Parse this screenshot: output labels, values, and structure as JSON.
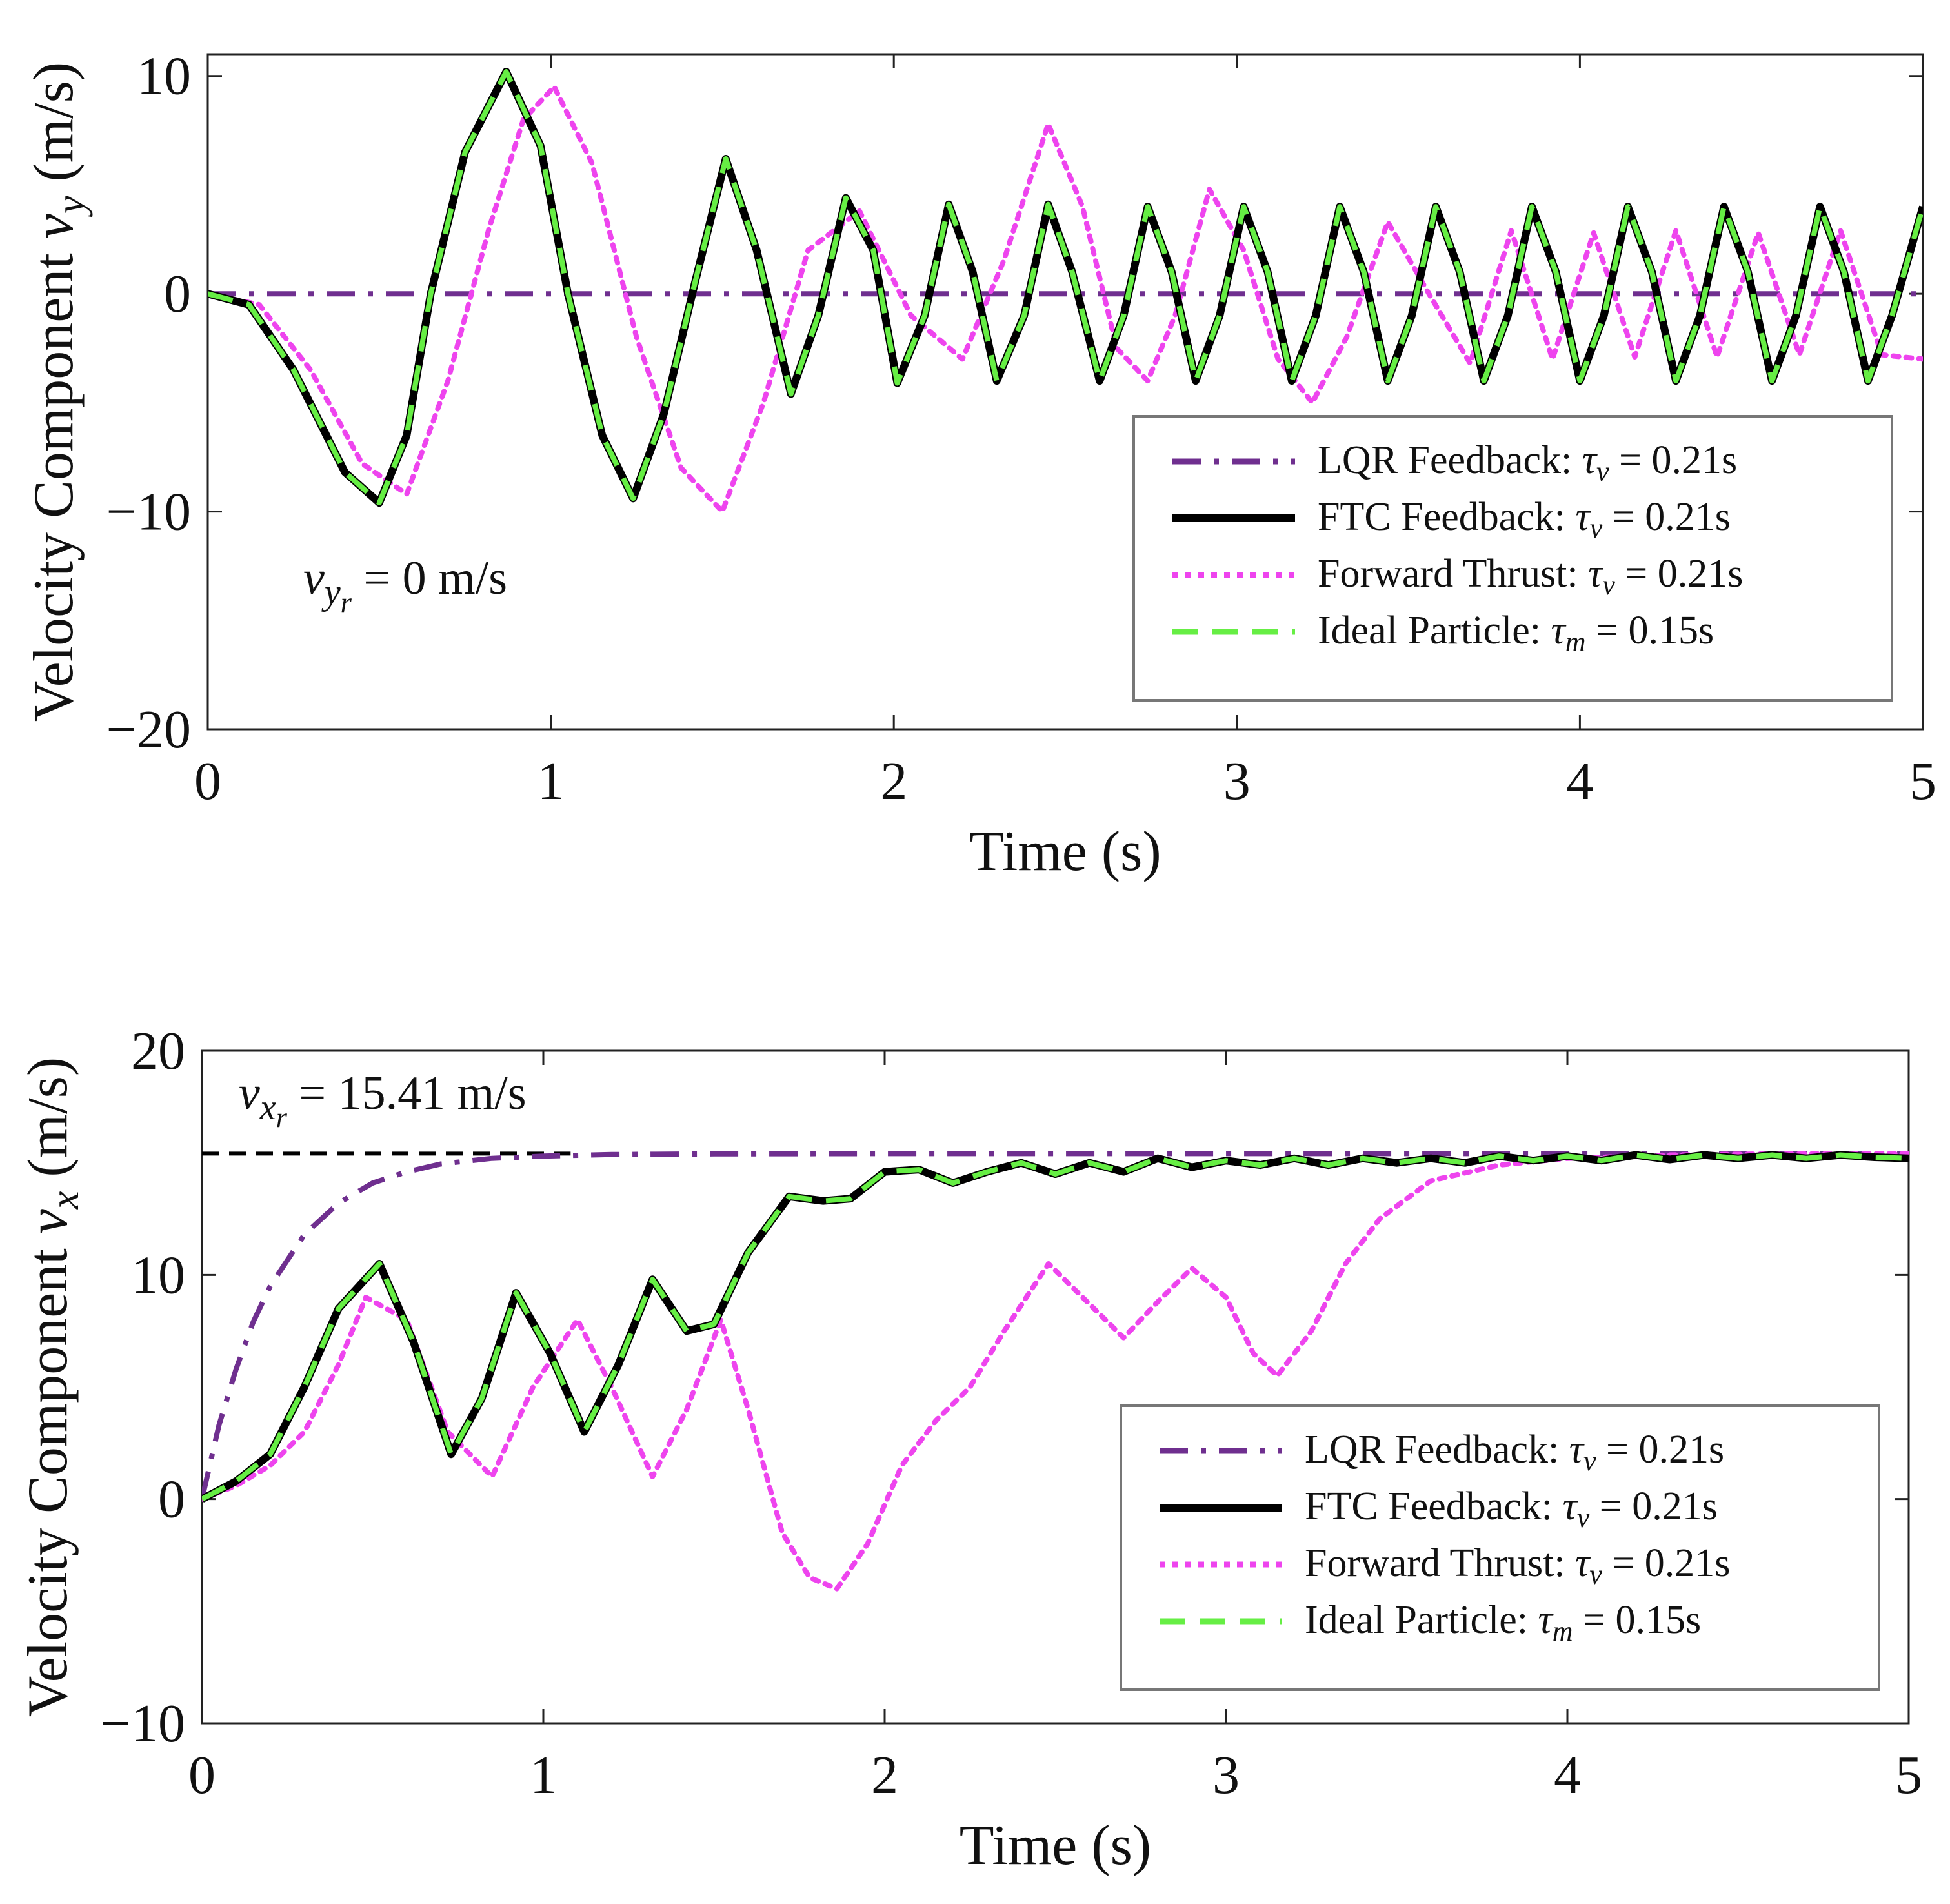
{
  "figure": {
    "description_free": true
  },
  "series_styles": [
    {
      "key": "lqr",
      "color": "#6f2f8f",
      "dash": "dashdot"
    },
    {
      "key": "ftc",
      "color": "#000000",
      "dash": "solid"
    },
    {
      "key": "fwd",
      "color": "#ee44ee",
      "dash": "dotted"
    },
    {
      "key": "ideal",
      "color": "#66ee44",
      "dash": "dashed"
    }
  ],
  "chart_data": [
    {
      "type": "line",
      "id": "vy",
      "xlabel": "Time (s)",
      "ylabel_main": "Velocity Component ",
      "ylabel_var": "v",
      "ylabel_sub": "y",
      "ylabel_units": " (m/s)",
      "xlim": [
        0,
        5
      ],
      "ylim": [
        -20,
        11
      ],
      "xticks": [
        0,
        1,
        2,
        3,
        4,
        5
      ],
      "xtick_labels": [
        "0",
        "1",
        "2",
        "3",
        "4",
        "5"
      ],
      "yticks": [
        -20,
        -10,
        0,
        10
      ],
      "ytick_labels": [
        "−20",
        "−10",
        "0",
        "10"
      ],
      "legend_position": "lower-right",
      "annotation": {
        "var": "v",
        "sub": "y",
        "subsub": "r",
        "text": "= 0 m/s"
      },
      "series": [
        {
          "name": "LQR Feedback",
          "key": "lqr",
          "tau_symbol": "v",
          "tau_value": "= 0.21s",
          "x": [
            0,
            5
          ],
          "y": [
            0,
            0
          ]
        },
        {
          "name": "FTC Feedback",
          "key": "ftc",
          "tau_symbol": "v",
          "tau_value": "= 0.21s",
          "x": [
            0,
            0.12,
            0.25,
            0.4,
            0.5,
            0.58,
            0.65,
            0.75,
            0.87,
            0.97,
            1.05,
            1.15,
            1.24,
            1.33,
            1.42,
            1.51,
            1.6,
            1.7,
            1.78,
            1.86,
            1.94,
            2.01,
            2.09,
            2.16,
            2.23,
            2.3,
            2.38,
            2.45,
            2.52,
            2.6,
            2.67,
            2.74,
            2.81,
            2.88,
            2.95,
            3.02,
            3.09,
            3.16,
            3.23,
            3.3,
            3.37,
            3.44,
            3.51,
            3.58,
            3.65,
            3.72,
            3.79,
            3.86,
            3.93,
            4.0,
            4.07,
            4.14,
            4.21,
            4.28,
            4.35,
            4.42,
            4.49,
            4.56,
            4.63,
            4.7,
            4.77,
            4.84,
            4.91,
            5.0
          ],
          "y": [
            0,
            -0.5,
            -3.5,
            -8.2,
            -9.6,
            -6.5,
            0,
            6.5,
            10.2,
            6.8,
            0,
            -6.5,
            -9.4,
            -5.5,
            0.5,
            6.2,
            2,
            -4.6,
            -1,
            4.4,
            2,
            -4.1,
            -1,
            4.1,
            1,
            -4,
            -1,
            4.1,
            1,
            -4,
            -1,
            4,
            1,
            -4,
            -1,
            4,
            1,
            -4,
            -1,
            4,
            1,
            -4,
            -1,
            4,
            1,
            -4,
            -1,
            4,
            1,
            -4,
            -1,
            4,
            1,
            -4,
            -1,
            4,
            1,
            -4,
            -1,
            4,
            1,
            -4,
            -1,
            4
          ]
        },
        {
          "name": "Forward Thrust",
          "key": "fwd",
          "tau_symbol": "v",
          "tau_value": "= 0.21s",
          "x": [
            0,
            0.15,
            0.3,
            0.45,
            0.58,
            0.7,
            0.82,
            0.92,
            1.01,
            1.12,
            1.25,
            1.38,
            1.5,
            1.62,
            1.75,
            1.9,
            2.05,
            2.2,
            2.32,
            2.45,
            2.55,
            2.65,
            2.74,
            2.82,
            2.92,
            3.02,
            3.12,
            3.22,
            3.32,
            3.44,
            3.56,
            3.68,
            3.8,
            3.92,
            4.04,
            4.16,
            4.28,
            4.4,
            4.52,
            4.64,
            4.76,
            4.88,
            5.0
          ],
          "y": [
            0,
            -0.5,
            -3.5,
            -7.8,
            -9.2,
            -4,
            3,
            8,
            9.5,
            6,
            -2,
            -8,
            -10,
            -5,
            2,
            3.8,
            -1,
            -3,
            1.5,
            7.8,
            4,
            -2.5,
            -4,
            -1,
            4.8,
            2,
            -3,
            -5,
            -2,
            3.3,
            0,
            -3.2,
            2.9,
            -3,
            2.8,
            -2.9,
            2.9,
            -2.9,
            2.8,
            -2.8,
            2.9,
            -2.8,
            -3
          ]
        },
        {
          "name": "Ideal Particle",
          "key": "ideal",
          "tau_symbol": "m",
          "tau_value": "= 0.15s",
          "x": [
            0,
            0.12,
            0.25,
            0.4,
            0.5,
            0.58,
            0.65,
            0.75,
            0.87,
            0.97,
            1.05,
            1.15,
            1.24,
            1.33,
            1.42,
            1.51,
            1.6,
            1.7,
            1.78,
            1.86,
            1.94,
            2.01,
            2.09,
            2.16,
            2.23,
            2.3,
            2.38,
            2.45,
            2.52,
            2.6,
            2.67,
            2.74,
            2.81,
            2.88,
            2.95,
            3.02,
            3.09,
            3.16,
            3.23,
            3.3,
            3.37,
            3.44,
            3.51,
            3.58,
            3.65,
            3.72,
            3.79,
            3.86,
            3.93,
            4.0,
            4.07,
            4.14,
            4.21,
            4.28,
            4.35,
            4.42,
            4.49,
            4.56,
            4.63,
            4.7,
            4.77,
            4.84,
            4.91,
            5.0
          ],
          "y": [
            0,
            -0.5,
            -3.5,
            -8.2,
            -9.6,
            -6.5,
            0,
            6.5,
            10.2,
            6.8,
            0,
            -6.5,
            -9.4,
            -5.5,
            0.5,
            6.2,
            2,
            -4.6,
            -1,
            4.4,
            2,
            -4.1,
            -1,
            4.1,
            1,
            -4,
            -1,
            4.1,
            1,
            -4,
            -1,
            4,
            1,
            -4,
            -1,
            4,
            1,
            -4,
            -1,
            4,
            1,
            -4,
            -1,
            4,
            1,
            -4,
            -1,
            4,
            1,
            -4,
            -1,
            4,
            1,
            -4,
            -1,
            4,
            1,
            -4,
            -1,
            4,
            1,
            -4,
            -1,
            4
          ]
        }
      ]
    },
    {
      "type": "line",
      "id": "vx",
      "xlabel": "Time (s)",
      "ylabel_main": "Velocity Component ",
      "ylabel_var": "v",
      "ylabel_sub": "x",
      "ylabel_units": " (m/s)",
      "xlim": [
        0,
        5
      ],
      "ylim": [
        -10,
        20
      ],
      "xticks": [
        0,
        1,
        2,
        3,
        4,
        5
      ],
      "xtick_labels": [
        "0",
        "1",
        "2",
        "3",
        "4",
        "5"
      ],
      "yticks": [
        -10,
        0,
        10,
        20
      ],
      "ytick_labels": [
        "−10",
        "0",
        "10",
        "20"
      ],
      "legend_position": "lower-right",
      "annotation": {
        "var": "v",
        "sub": "x",
        "subsub": "r",
        "text": "= 15.41 m/s"
      },
      "reference_line": {
        "y": 15.41,
        "x": [
          0,
          1.08
        ],
        "color": "#000000"
      },
      "series": [
        {
          "name": "LQR Feedback",
          "key": "lqr",
          "tau_symbol": "v",
          "tau_value": "= 0.21s",
          "x": [
            0,
            0.05,
            0.1,
            0.15,
            0.2,
            0.3,
            0.4,
            0.5,
            0.6,
            0.7,
            0.85,
            1.0,
            1.2,
            1.5,
            2.0,
            3.0,
            5.0
          ],
          "y": [
            0,
            3.3,
            5.8,
            7.9,
            9.5,
            11.8,
            13.2,
            14.1,
            14.6,
            14.95,
            15.2,
            15.3,
            15.37,
            15.4,
            15.41,
            15.41,
            15.41
          ]
        },
        {
          "name": "FTC Feedback",
          "key": "ftc",
          "tau_symbol": "v",
          "tau_value": "= 0.21s",
          "x": [
            0,
            0.1,
            0.2,
            0.3,
            0.4,
            0.52,
            0.62,
            0.73,
            0.82,
            0.92,
            1.02,
            1.12,
            1.22,
            1.32,
            1.42,
            1.5,
            1.6,
            1.72,
            1.82,
            1.9,
            2.0,
            2.1,
            2.2,
            2.3,
            2.4,
            2.5,
            2.6,
            2.7,
            2.8,
            2.9,
            3.0,
            3.1,
            3.2,
            3.3,
            3.4,
            3.5,
            3.6,
            3.7,
            3.8,
            3.9,
            4.0,
            4.1,
            4.2,
            4.3,
            4.4,
            4.5,
            4.6,
            4.7,
            4.8,
            4.9,
            5.0
          ],
          "y": [
            0,
            0.8,
            2,
            5,
            8.5,
            10.5,
            7,
            2,
            4.5,
            9.2,
            6.5,
            3,
            6,
            9.8,
            7.5,
            7.8,
            11,
            13.5,
            13.3,
            13.4,
            14.6,
            14.7,
            14.1,
            14.6,
            15,
            14.5,
            15,
            14.6,
            15.2,
            14.8,
            15.1,
            14.9,
            15.2,
            14.9,
            15.2,
            15,
            15.2,
            15,
            15.3,
            15.1,
            15.3,
            15.1,
            15.35,
            15.15,
            15.35,
            15.2,
            15.35,
            15.2,
            15.35,
            15.25,
            15.2
          ]
        },
        {
          "name": "Forward Thrust",
          "key": "fwd",
          "tau_symbol": "v",
          "tau_value": "= 0.21s",
          "x": [
            0,
            0.1,
            0.2,
            0.3,
            0.4,
            0.48,
            0.6,
            0.72,
            0.85,
            0.97,
            1.1,
            1.2,
            1.32,
            1.42,
            1.52,
            1.6,
            1.7,
            1.78,
            1.86,
            1.95,
            2.05,
            2.15,
            2.25,
            2.35,
            2.48,
            2.58,
            2.7,
            2.8,
            2.9,
            3.0,
            3.08,
            3.15,
            3.25,
            3.35,
            3.45,
            3.6,
            3.8,
            4.0,
            4.3,
            4.6,
            5.0
          ],
          "y": [
            0,
            0.6,
            1.5,
            3,
            6,
            9,
            8,
            3,
            1,
            5,
            8,
            5,
            1,
            4,
            8,
            4,
            -1.5,
            -3.5,
            -4,
            -2,
            1.5,
            3.5,
            5,
            7.5,
            10.5,
            9,
            7.2,
            8.8,
            10.3,
            9,
            6.5,
            5.5,
            7.5,
            10.5,
            12.5,
            14.2,
            14.9,
            15.2,
            15.35,
            15.4,
            15.41
          ]
        },
        {
          "name": "Ideal Particle",
          "key": "ideal",
          "tau_symbol": "m",
          "tau_value": "= 0.15s",
          "x": [
            0,
            0.1,
            0.2,
            0.3,
            0.4,
            0.52,
            0.62,
            0.73,
            0.82,
            0.92,
            1.02,
            1.12,
            1.22,
            1.32,
            1.42,
            1.5,
            1.6,
            1.72,
            1.82,
            1.9,
            2.0,
            2.1,
            2.2,
            2.3,
            2.4,
            2.5,
            2.6,
            2.7,
            2.8,
            2.9,
            3.0,
            3.1,
            3.2,
            3.3,
            3.4,
            3.5,
            3.6,
            3.7,
            3.8,
            3.9,
            4.0,
            4.1,
            4.2,
            4.3,
            4.4,
            4.5,
            4.6,
            4.7,
            4.8,
            4.9,
            5.0
          ],
          "y": [
            0,
            0.8,
            2,
            5,
            8.5,
            10.5,
            7,
            2,
            4.5,
            9.2,
            6.5,
            3,
            6,
            9.8,
            7.5,
            7.8,
            11,
            13.5,
            13.3,
            13.4,
            14.6,
            14.7,
            14.1,
            14.6,
            15,
            14.5,
            15,
            14.6,
            15.2,
            14.8,
            15.1,
            14.9,
            15.2,
            14.9,
            15.2,
            15,
            15.2,
            15,
            15.3,
            15.1,
            15.3,
            15.1,
            15.35,
            15.15,
            15.35,
            15.2,
            15.35,
            15.2,
            15.35,
            15.25,
            15.2
          ]
        }
      ]
    }
  ]
}
